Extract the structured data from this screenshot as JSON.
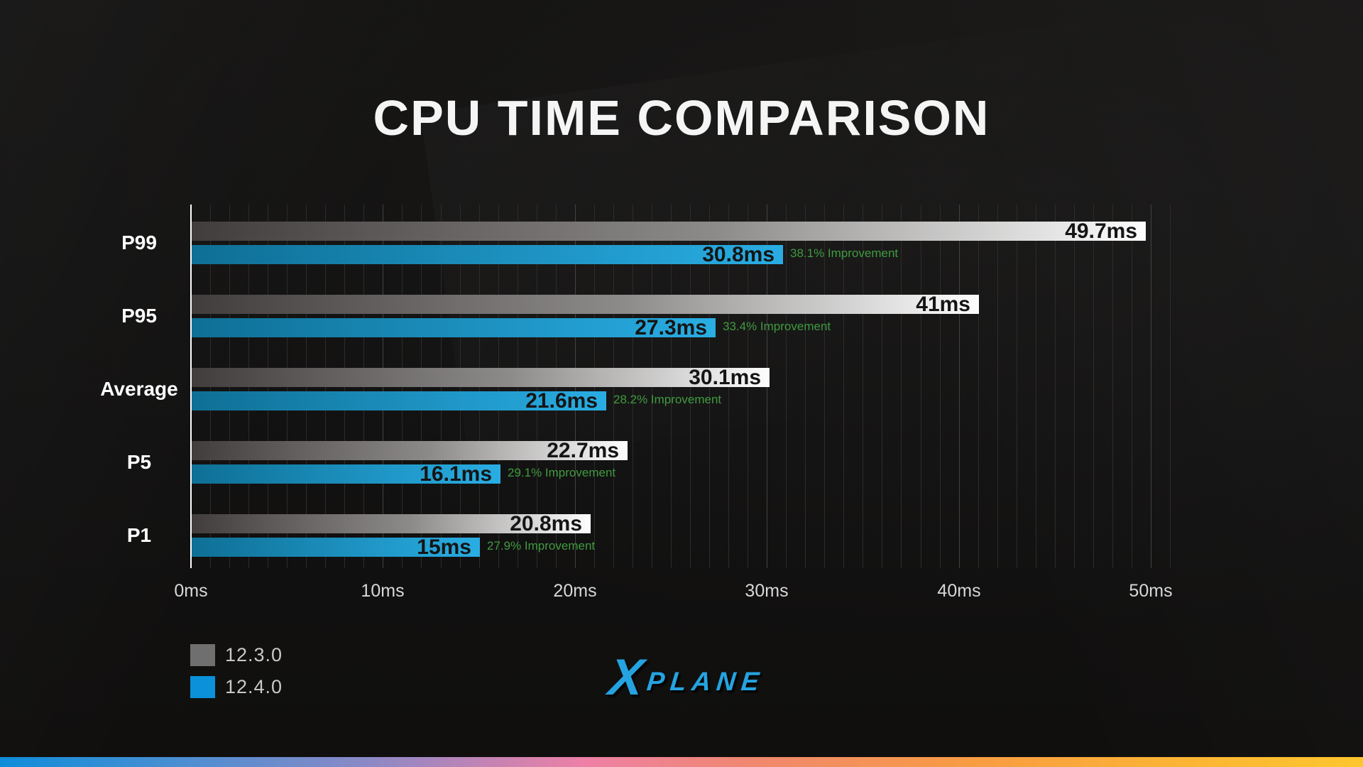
{
  "title": "CPU TIME COMPARISON",
  "chart_data": {
    "type": "bar",
    "orientation": "horizontal",
    "title": "CPU TIME COMPARISON",
    "unit": "ms",
    "categories": [
      "P99",
      "P95",
      "Average",
      "P5",
      "P1"
    ],
    "series": [
      {
        "name": "12.3.0",
        "color": "#6f6f6f",
        "values": [
          49.7,
          41,
          30.1,
          22.7,
          20.8
        ]
      },
      {
        "name": "12.4.0",
        "color": "#0a91da",
        "values": [
          30.8,
          27.3,
          21.6,
          16.1,
          15
        ]
      }
    ],
    "rows": [
      {
        "category": "P99",
        "old_ms": 49.7,
        "new_ms": 30.8,
        "old_label": "49.7ms",
        "new_label": "30.8ms",
        "improvement": "38.1% Improvement"
      },
      {
        "category": "P95",
        "old_ms": 41,
        "new_ms": 27.3,
        "old_label": "41ms",
        "new_label": "27.3ms",
        "improvement": "33.4% Improvement"
      },
      {
        "category": "Average",
        "old_ms": 30.1,
        "new_ms": 21.6,
        "old_label": "30.1ms",
        "new_label": "21.6ms",
        "improvement": "28.2% Improvement"
      },
      {
        "category": "P5",
        "old_ms": 22.7,
        "new_ms": 16.1,
        "old_label": "22.7ms",
        "new_label": "16.1ms",
        "improvement": "29.1% Improvement"
      },
      {
        "category": "P1",
        "old_ms": 20.8,
        "new_ms": 15,
        "old_label": "20.8ms",
        "new_label": "15ms",
        "improvement": "27.9% Improvement"
      }
    ],
    "x_ticks": [
      "0ms",
      "10ms",
      "20ms",
      "30ms",
      "40ms",
      "50ms"
    ],
    "xlim": [
      0,
      51
    ],
    "grid": "vertical-minor-every-1ms-major-every-10ms",
    "legend_position": "bottom-left",
    "improvement_color": "#3f9b40",
    "bar_gradient_old": [
      "#413d3c",
      "#fdfdfd"
    ],
    "bar_gradient_new": [
      "#0e6f95",
      "#29ade3"
    ]
  },
  "legend": {
    "items": [
      {
        "label": "12.3.0",
        "color": "#6f6f6f"
      },
      {
        "label": "12.4.0",
        "color": "#0a91da"
      }
    ]
  },
  "logo": {
    "x": "X",
    "plane": "PLANE",
    "color": "#25a3e0"
  },
  "footer": {
    "gradient_colors": [
      "#0f8dd9",
      "#ee80a6",
      "#f89d41",
      "#fdc62e"
    ]
  }
}
